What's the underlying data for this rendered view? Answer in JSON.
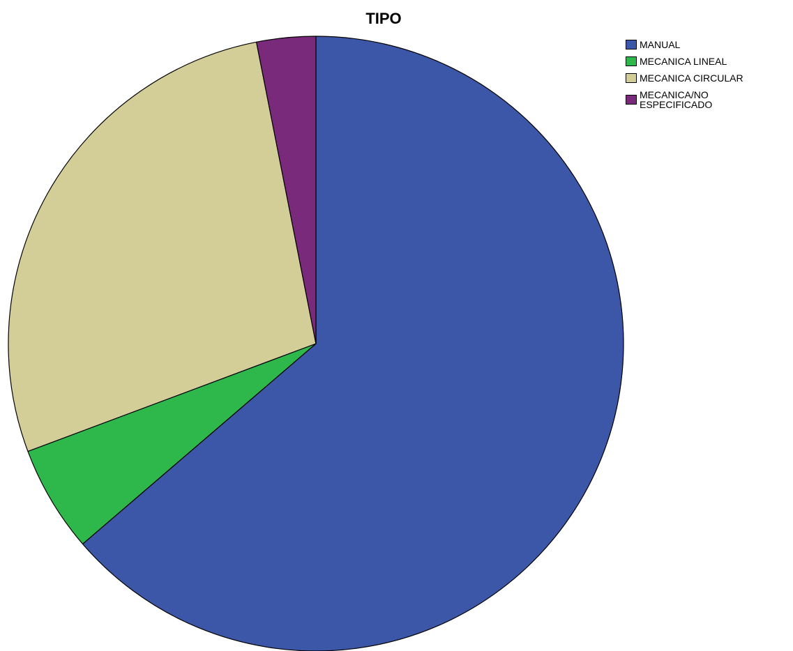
{
  "chart_data": {
    "type": "pie",
    "title": "TIPO",
    "legend_position": "top-right",
    "start_angle_deg": 0,
    "direction": "clockwise",
    "slices": [
      {
        "label": "MANUAL",
        "value": 63.7,
        "color": "#3c57a8"
      },
      {
        "label": "MECANICA LINEAL",
        "value": 5.6,
        "color": "#2eb74b"
      },
      {
        "label": "MECANICA CIRCULAR",
        "value": 27.6,
        "color": "#d3cd97"
      },
      {
        "label": "MECANICA/NO ESPECIFICADO",
        "value": 3.1,
        "color": "#7a2a7b"
      }
    ],
    "legend_labels": [
      "MANUAL",
      "MECANICA LINEAL",
      "MECANICA CIRCULAR",
      "MECANICA/NO\nESPECIFICADO"
    ]
  }
}
